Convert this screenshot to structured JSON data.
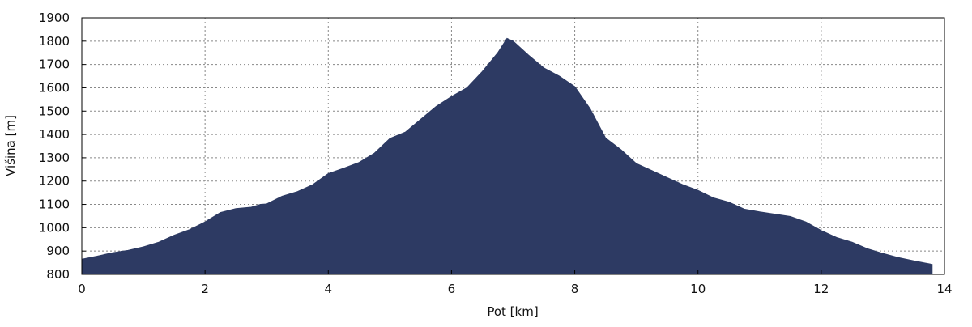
{
  "chart_data": {
    "type": "area",
    "x_label": "Pot [km]",
    "y_label": "Višina [m]",
    "x": [
      0,
      0.25,
      0.5,
      0.75,
      1.0,
      1.25,
      1.5,
      1.75,
      2.0,
      2.25,
      2.5,
      2.75,
      2.9,
      3.0,
      3.25,
      3.5,
      3.75,
      4.0,
      4.25,
      4.5,
      4.75,
      5.0,
      5.25,
      5.5,
      5.75,
      6.0,
      6.25,
      6.5,
      6.75,
      6.9,
      7.0,
      7.25,
      7.5,
      7.75,
      8.0,
      8.25,
      8.5,
      8.75,
      9.0,
      9.25,
      9.5,
      9.75,
      10.0,
      10.25,
      10.5,
      10.75,
      11.0,
      11.25,
      11.5,
      11.75,
      12.0,
      12.25,
      12.5,
      12.75,
      13.0,
      13.25,
      13.5,
      13.8
    ],
    "values": [
      865,
      878,
      893,
      903,
      918,
      938,
      968,
      992,
      1025,
      1065,
      1082,
      1088,
      1100,
      1102,
      1135,
      1155,
      1185,
      1232,
      1255,
      1280,
      1320,
      1383,
      1410,
      1465,
      1520,
      1563,
      1600,
      1670,
      1750,
      1812,
      1800,
      1740,
      1685,
      1650,
      1605,
      1510,
      1385,
      1335,
      1275,
      1245,
      1215,
      1185,
      1160,
      1128,
      1110,
      1080,
      1068,
      1058,
      1048,
      1025,
      988,
      958,
      938,
      910,
      890,
      872,
      858,
      843
    ],
    "color": "#2d3a63",
    "xlim": [
      0,
      14
    ],
    "xticks": [
      0,
      2,
      4,
      6,
      8,
      10,
      12,
      14
    ],
    "ylim": [
      800,
      1900
    ],
    "yticks": [
      800,
      900,
      1000,
      1100,
      1200,
      1300,
      1400,
      1500,
      1600,
      1700,
      1800,
      1900
    ],
    "grid": true
  }
}
